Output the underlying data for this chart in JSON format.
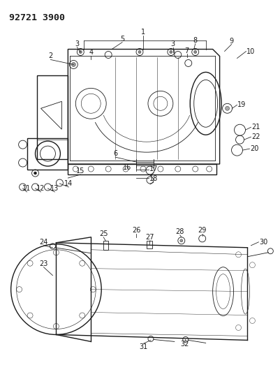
{
  "title": "92721 3900",
  "bg_color": "#ffffff",
  "line_color": "#1a1a1a",
  "title_fontsize": 9.5,
  "label_fontsize": 7,
  "fig_width": 4.02,
  "fig_height": 5.33,
  "dpi": 100
}
